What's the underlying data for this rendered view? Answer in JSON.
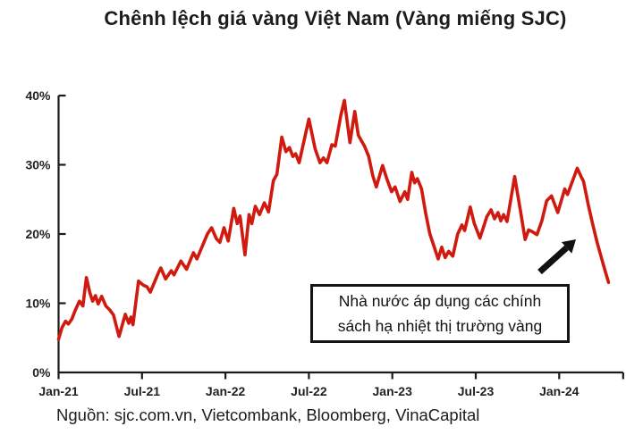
{
  "title": "Chênh lệch giá vàng Việt Nam (Vàng miếng SJC)",
  "source_note": "Nguồn: sjc.com.vn, Vietcombank, Bloomberg, VinaCapital",
  "annotation": {
    "line1": "Nhà nước áp dụng các chính",
    "line2": "sách hạ nhiệt thị trường vàng",
    "arrow_icon": "arrow-up-right"
  },
  "colors": {
    "line": "#d11a0f",
    "axis": "#1a1a1a",
    "text": "#1c1c1c",
    "annotation_border": "#141414",
    "arrow": "#111111"
  },
  "chart_data": {
    "type": "line",
    "title": "Chênh lệch giá vàng Việt Nam (Vàng miếng SJC)",
    "grid": false,
    "legend": false,
    "y_axis": {
      "unit": "%",
      "range": [
        0,
        40
      ],
      "tick_values": [
        0,
        10,
        20,
        30,
        40
      ],
      "tick_labels": [
        "0%",
        "10%",
        "20%",
        "30%",
        "40%"
      ]
    },
    "x_axis": {
      "unit": "months since Jan-2021",
      "range_months": [
        0,
        40.6
      ],
      "tick_months": [
        0,
        6,
        12,
        18,
        24,
        30,
        36
      ],
      "tick_labels": [
        "Jan-21",
        "Jul-21",
        "Jan-22",
        "Jul-22",
        "Jan-23",
        "Jul-23",
        "Jan-24"
      ],
      "end_tick": true
    },
    "series": [
      {
        "points": [
          [
            0.0,
            4.8
          ],
          [
            0.25,
            6.5
          ],
          [
            0.5,
            7.4
          ],
          [
            0.7,
            7.0
          ],
          [
            0.95,
            7.7
          ],
          [
            1.2,
            9.0
          ],
          [
            1.5,
            10.3
          ],
          [
            1.75,
            9.6
          ],
          [
            2.0,
            13.7
          ],
          [
            2.25,
            11.5
          ],
          [
            2.45,
            10.3
          ],
          [
            2.65,
            11.1
          ],
          [
            2.85,
            9.9
          ],
          [
            3.1,
            11.0
          ],
          [
            3.4,
            9.6
          ],
          [
            3.7,
            9.0
          ],
          [
            3.95,
            8.3
          ],
          [
            4.35,
            5.2
          ],
          [
            4.8,
            8.4
          ],
          [
            5.05,
            7.1
          ],
          [
            5.2,
            8.0
          ],
          [
            5.35,
            6.9
          ],
          [
            5.75,
            13.2
          ],
          [
            6.1,
            12.6
          ],
          [
            6.35,
            12.4
          ],
          [
            6.6,
            11.6
          ],
          [
            7.2,
            14.5
          ],
          [
            7.35,
            15.1
          ],
          [
            7.7,
            13.5
          ],
          [
            8.1,
            14.7
          ],
          [
            8.3,
            14.1
          ],
          [
            8.8,
            16.1
          ],
          [
            9.2,
            14.9
          ],
          [
            9.7,
            17.3
          ],
          [
            9.95,
            16.4
          ],
          [
            10.35,
            18.3
          ],
          [
            10.7,
            20.0
          ],
          [
            11.0,
            20.9
          ],
          [
            11.35,
            19.3
          ],
          [
            11.6,
            18.8
          ],
          [
            11.9,
            20.9
          ],
          [
            12.2,
            19.0
          ],
          [
            12.6,
            23.7
          ],
          [
            12.85,
            21.5
          ],
          [
            13.05,
            22.6
          ],
          [
            13.4,
            17.0
          ],
          [
            13.7,
            22.8
          ],
          [
            13.9,
            21.5
          ],
          [
            14.15,
            24.0
          ],
          [
            14.45,
            22.8
          ],
          [
            14.8,
            24.5
          ],
          [
            15.1,
            23.2
          ],
          [
            15.45,
            27.7
          ],
          [
            15.7,
            28.6
          ],
          [
            16.05,
            34.0
          ],
          [
            16.35,
            31.9
          ],
          [
            16.6,
            32.5
          ],
          [
            16.85,
            31.2
          ],
          [
            17.05,
            31.6
          ],
          [
            17.3,
            30.3
          ],
          [
            18.0,
            36.6
          ],
          [
            18.45,
            32.3
          ],
          [
            18.8,
            30.3
          ],
          [
            19.05,
            31.0
          ],
          [
            19.3,
            30.3
          ],
          [
            19.65,
            32.9
          ],
          [
            19.9,
            32.7
          ],
          [
            20.3,
            37.2
          ],
          [
            20.55,
            39.3
          ],
          [
            20.95,
            33.2
          ],
          [
            21.3,
            37.7
          ],
          [
            21.55,
            34.3
          ],
          [
            21.8,
            33.4
          ],
          [
            22.0,
            32.7
          ],
          [
            22.3,
            31.2
          ],
          [
            22.6,
            28.4
          ],
          [
            22.85,
            26.8
          ],
          [
            23.3,
            29.9
          ],
          [
            23.6,
            28.0
          ],
          [
            23.95,
            26.1
          ],
          [
            24.2,
            26.8
          ],
          [
            24.55,
            24.7
          ],
          [
            24.9,
            26.1
          ],
          [
            25.1,
            25.0
          ],
          [
            25.4,
            28.9
          ],
          [
            25.6,
            27.4
          ],
          [
            25.8,
            28.0
          ],
          [
            26.1,
            26.5
          ],
          [
            26.4,
            23.0
          ],
          [
            26.7,
            20.0
          ],
          [
            27.3,
            16.4
          ],
          [
            27.55,
            18.1
          ],
          [
            27.8,
            16.6
          ],
          [
            28.05,
            17.5
          ],
          [
            28.35,
            16.8
          ],
          [
            28.7,
            20.0
          ],
          [
            29.0,
            21.3
          ],
          [
            29.2,
            20.5
          ],
          [
            29.6,
            23.9
          ],
          [
            29.9,
            21.5
          ],
          [
            30.3,
            19.4
          ],
          [
            30.8,
            22.5
          ],
          [
            31.1,
            23.5
          ],
          [
            31.35,
            22.2
          ],
          [
            31.6,
            23.1
          ],
          [
            31.8,
            21.9
          ],
          [
            32.0,
            22.8
          ],
          [
            32.25,
            21.8
          ],
          [
            32.8,
            28.3
          ],
          [
            33.2,
            23.5
          ],
          [
            33.55,
            19.2
          ],
          [
            33.8,
            20.6
          ],
          [
            34.1,
            20.3
          ],
          [
            34.4,
            19.9
          ],
          [
            34.75,
            21.9
          ],
          [
            35.1,
            24.8
          ],
          [
            35.45,
            25.5
          ],
          [
            35.9,
            23.1
          ],
          [
            36.4,
            26.5
          ],
          [
            36.6,
            25.7
          ],
          [
            37.3,
            29.5
          ],
          [
            37.55,
            28.4
          ],
          [
            37.75,
            27.6
          ],
          [
            38.1,
            24.1
          ],
          [
            38.4,
            21.5
          ],
          [
            38.7,
            19.0
          ],
          [
            39.0,
            16.8
          ],
          [
            39.3,
            14.7
          ],
          [
            39.55,
            13.0
          ]
        ]
      }
    ]
  }
}
